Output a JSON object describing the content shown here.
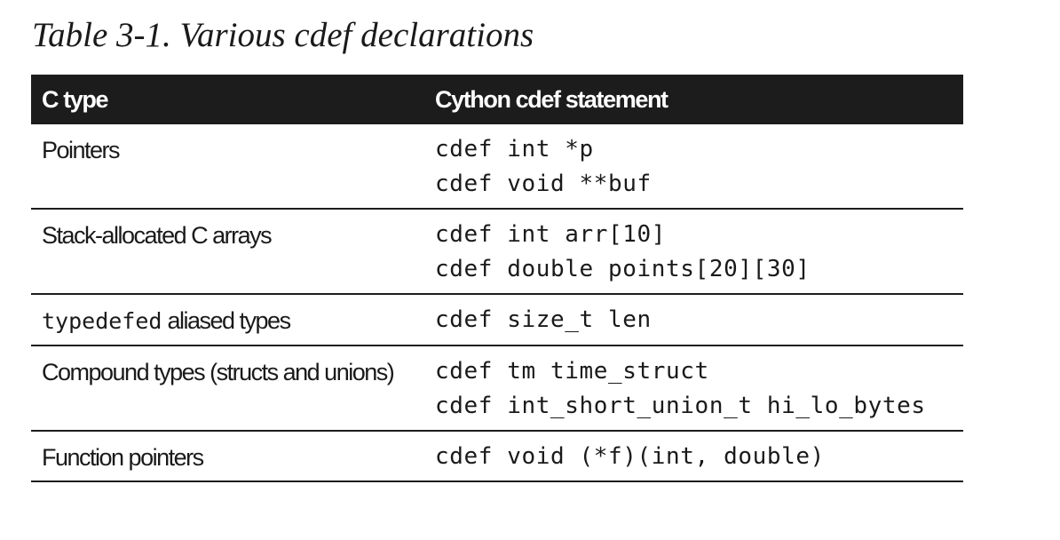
{
  "caption": "Table 3-1. Various cdef declarations",
  "table": {
    "headers": [
      "C type",
      "Cython cdef statement"
    ],
    "rows": [
      {
        "ctype": "Pointers",
        "ctype_code": "",
        "statements": [
          "cdef int *p",
          "cdef void **buf"
        ]
      },
      {
        "ctype": "Stack-allocated C arrays",
        "ctype_code": "",
        "statements": [
          "cdef int arr[10]",
          "cdef double points[20][30]"
        ]
      },
      {
        "ctype": " aliased types",
        "ctype_code": "typedefed",
        "statements": [
          "cdef size_t len"
        ]
      },
      {
        "ctype": "Compound types (structs and unions)",
        "ctype_code": "",
        "statements": [
          "cdef tm time_struct",
          "cdef int_short_union_t hi_lo_bytes"
        ]
      },
      {
        "ctype": "Function pointers",
        "ctype_code": "",
        "statements": [
          "cdef void (*f)(int, double)"
        ]
      }
    ]
  }
}
